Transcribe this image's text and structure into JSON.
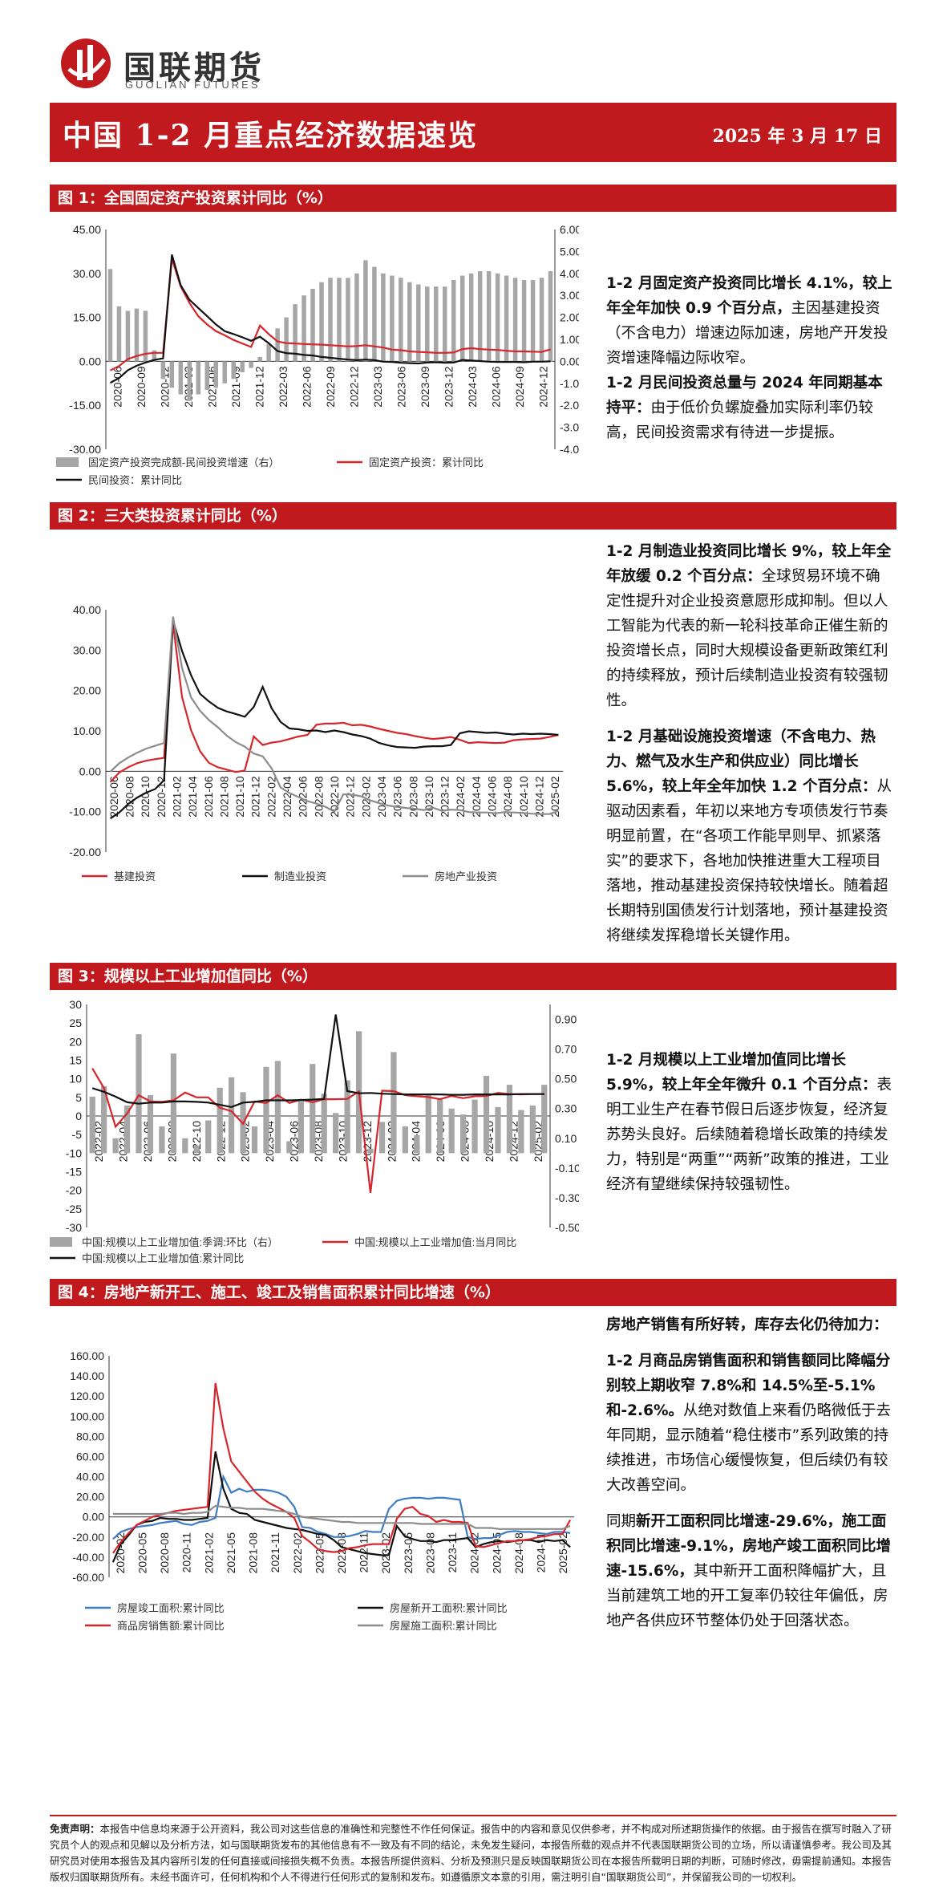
{
  "header": {
    "logo_text": "国联期货",
    "logo_sub": "GUOLIAN FUTURES",
    "title": "中国 1-2 月重点经济数据速览",
    "date": "2025 年 3 月 17 日"
  },
  "sections": [
    {
      "title": "图 1：全国固定资产投资累计同比（%）"
    },
    {
      "title": "图 2：三大类投资累计同比（%）"
    },
    {
      "title": "图 3：规模以上工业增加值同比（%）"
    },
    {
      "title": "图 4：房地产新开工、施工、竣工及销售面积累计同比增速（%）"
    }
  ],
  "text": {
    "s1_p1_bold": "1-2 月固定资产投资同比增长 4.1%，较上年全年加快 0.9 个百分点，",
    "s1_p1_rest": "主因基建投资（不含电力）增速边际加速，房地产开发投资增速降幅边际收窄。",
    "s1_p2_bold": "1-2 月民间投资总量与 2024 年同期基本持平：",
    "s1_p2_rest": "由于低价负螺旋叠加实际利率仍较高，民间投资需求有待进一步提振。",
    "s2_p1_bold": "1-2 月制造业投资同比增长 9%，较上年全年放缓 0.2 个百分点：",
    "s2_p1_rest": "全球贸易环境不确定性提升对企业投资意愿形成抑制。但以人工智能为代表的新一轮科技革命正催生新的投资增长点，同时大规模设备更新政策红利的持续释放，预计后续制造业投资有较强韧性。",
    "s2_p2_bold": "1-2 月基础设施投资增速（不含电力、热力、燃气及水生产和供应业）同比增长 5.6%，较上年全年加快 1.2 个百分点：",
    "s2_p2_rest": "从驱动因素看，年初以来地方专项债发行节奏明显前置，在“各项工作能早则早、抓紧落实”的要求下，各地加快推进重大工程项目落地，推动基建投资保持较快增长。随着超长期特别国债发行计划落地，预计基建投资将继续发挥稳增长关键作用。",
    "s3_p1_bold": "1-2 月规模以上工业增加值同比增长 5.9%，较上年全年微升 0.1 个百分点：",
    "s3_p1_rest": "表明工业生产在春节假日后逐步恢复，经济复苏势头良好。后续随着稳增长政策的持续发力，特别是“两重”“两新”政策的推进，工业经济有望继续保持较强韧性。",
    "s4_p0_bold": "房地产销售有所好转，库存去化仍待加力：",
    "s4_p1_bold": "1-2 月商品房销售面积和销售额同比降幅分别较上期收窄 7.8%和 14.5%至-5.1%和-2.6%。",
    "s4_p1_rest": "从绝对数值上来看仍略微低于去年同期，显示随着“稳住楼市”系列政策的持续推进，市场信心缓慢恢复，但后续仍有较大改善空间。",
    "s4_p2_pre": "同期",
    "s4_p2_bold": "新开工面积同比增速-29.6%，施工面积同比增速-9.1%，房地产竣工面积同比增速-15.6%，",
    "s4_p2_rest": "其中新开工面积降幅扩大，且当前建筑工地的开工复率仍较往年偏低，房地产各供应环节整体仍处于回落状态。"
  },
  "disclaimer": {
    "label": "免责声明：",
    "body": "本报告中信息均来源于公开资料，我公司对这些信息的准确性和完整性不作任何保证。报告中的内容和意见仅供参考，并不构成对所述期货操作的依据。由于报告在撰写时融入了研究员个人的观点和见解以及分析方法，如与国联期货发布的其他信息有不一致及有不同的结论，未免发生疑问，本报告所载的观点并不代表国联期货公司的立场，所以请谨慎参考。我公司及其研究员对使用本报告及其内容所引发的任何直接或间接损失概不负责。本报告所提供资料、分析及预测只是反映国联期货公司在本报告所载明日期的判断，可随时修改，毋需提前通知。本报告版权归国联期货所有。未经书面许可，任何机构和个人不得进行任何形式的复制和发布。如遵循原文本意的引用，需注明引自“国联期货公司”，并保留我公司的一切权利。"
  },
  "colors": {
    "brand_red": "#c01a1f",
    "line_red": "#d7262b",
    "line_black": "#111111",
    "bar_gray": "#a6a6a6",
    "line_gray": "#8c8c8c",
    "line_blue": "#3e7cc4"
  },
  "chart_data": [
    {
      "type": "line",
      "ylim": [
        -30,
        45
      ],
      "ylim_right": [
        -4,
        6
      ],
      "yticks": [
        "45.00",
        "30.00",
        "15.00",
        "0.00",
        "-15.00",
        "-30.00"
      ],
      "yticks_right": [
        "6.00",
        "5.00",
        "4.00",
        "3.00",
        "2.00",
        "1.00",
        "0.00",
        "-1.00",
        "-2.00",
        "-3.00",
        "-4.00"
      ],
      "xticks": [
        "2020-06",
        "2020-09",
        "2020-12",
        "2021-03",
        "2021-06",
        "2021-09",
        "2021-12",
        "2022-03",
        "2022-06",
        "2022-09",
        "2022-12",
        "2023-03",
        "2023-06",
        "2023-09",
        "2023-12",
        "2024-03",
        "2024-06",
        "2024-09",
        "2024-12"
      ],
      "series": [
        {
          "name": "固定资产投资完成额-民间投资增速（右）",
          "style": "bar",
          "axis": "right",
          "values": [
            4.2,
            2.5,
            2.3,
            2.4,
            2.3,
            0.5,
            -0.8,
            -1.2,
            -1.5,
            -1.8,
            -1.5,
            -1.3,
            -1.2,
            -1.0,
            -0.8,
            -0.5,
            -0.3,
            0.2,
            0.8,
            1.5,
            2.0,
            2.6,
            3.0,
            3.3,
            3.6,
            3.8,
            3.8,
            3.8,
            4.0,
            4.6,
            4.3,
            4.0,
            3.9,
            3.8,
            3.6,
            3.5,
            3.4,
            3.4,
            3.4,
            3.7,
            3.9,
            4.0,
            4.1,
            4.1,
            4.0,
            3.9,
            3.8,
            3.7,
            3.7,
            3.8,
            4.1
          ]
        },
        {
          "name": "固定资产投资：累计同比",
          "style": "line",
          "axis": "left",
          "values": [
            -3.1,
            -1.6,
            0.8,
            1.8,
            2.6,
            2.9,
            2.9,
            35.0,
            25.6,
            19.9,
            15.4,
            12.6,
            10.3,
            8.9,
            7.3,
            6.1,
            4.9,
            12.2,
            9.3,
            6.8,
            6.2,
            6.1,
            5.9,
            5.8,
            5.7,
            5.5,
            5.3,
            5.1,
            5.2,
            5.5,
            5.1,
            4.7,
            4.0,
            3.8,
            3.4,
            3.2,
            3.1,
            2.9,
            2.9,
            3.0,
            4.2,
            4.5,
            4.2,
            4.0,
            3.9,
            3.6,
            3.4,
            3.4,
            3.3,
            3.2,
            4.1
          ]
        },
        {
          "name": "民间投资：累计同比",
          "style": "line",
          "axis": "left",
          "values": [
            -7.3,
            -5.7,
            -3.0,
            -1.5,
            -0.4,
            0.5,
            1.0,
            36.4,
            26.0,
            21.0,
            18.2,
            15.4,
            12.6,
            10.3,
            9.3,
            8.2,
            7.0,
            8.4,
            6.2,
            3.5,
            2.8,
            2.6,
            2.2,
            2.0,
            1.5,
            1.2,
            0.9,
            0.6,
            0.4,
            0.6,
            0.4,
            -0.1,
            -0.2,
            -0.5,
            -0.6,
            -0.7,
            -0.4,
            -0.3,
            -0.5,
            -0.4,
            0.5,
            0.3,
            0.1,
            -0.1,
            -0.2,
            -0.2,
            -0.2,
            -0.3,
            -0.1,
            -0.1,
            0.0
          ]
        }
      ]
    },
    {
      "type": "line",
      "ylim": [
        -20,
        40
      ],
      "yticks": [
        "40.00",
        "30.00",
        "20.00",
        "10.00",
        "0.00",
        "-10.00",
        "-20.00"
      ],
      "xticks": [
        "2020-06",
        "2020-08",
        "2020-10",
        "2020-12",
        "2021-02",
        "2021-04",
        "2021-06",
        "2021-08",
        "2021-10",
        "2021-12",
        "2022-02",
        "2022-04",
        "2022-06",
        "2022-08",
        "2022-10",
        "2022-12",
        "2023-02",
        "2023-04",
        "2023-06",
        "2023-08",
        "2023-10",
        "2023-12",
        "2024-02",
        "2024-04",
        "2024-06",
        "2024-08",
        "2024-10",
        "2024-12",
        "2025-02"
      ],
      "series": [
        {
          "name": "基建投资",
          "values": [
            -2.7,
            -0.3,
            1.0,
            2.0,
            2.6,
            3.0,
            3.3,
            36.6,
            18.4,
            10.2,
            5.0,
            2.1,
            1.0,
            0.4,
            -0.2,
            0.2,
            8.6,
            6.5,
            7.1,
            7.4,
            8.0,
            8.6,
            9.0,
            11.5,
            11.8,
            11.8,
            12.0,
            11.4,
            11.5,
            11.1,
            10.5,
            10.0,
            9.5,
            9.2,
            8.7,
            8.3,
            8.0,
            8.2,
            8.5,
            7.8,
            7.0,
            7.2,
            7.1,
            7.0,
            7.1,
            7.7,
            7.9,
            8.0,
            8.1,
            8.5,
            9.0
          ]
        },
        {
          "name": "制造业投资",
          "values": [
            -11.7,
            -10.2,
            -8.1,
            -6.5,
            -5.3,
            -4.4,
            -2.2,
            37.3,
            29.8,
            23.8,
            19.2,
            17.3,
            15.7,
            14.8,
            14.2,
            13.5,
            15.9,
            20.9,
            15.6,
            12.2,
            10.6,
            10.4,
            10.0,
            10.1,
            9.7,
            10.1,
            9.7,
            9.1,
            8.7,
            8.1,
            7.0,
            6.4,
            6.0,
            5.9,
            5.8,
            6.1,
            6.2,
            6.2,
            6.5,
            9.4,
            9.9,
            9.7,
            9.5,
            9.6,
            9.3,
            9.1,
            9.3,
            9.2,
            9.3,
            9.2,
            9.0
          ]
        },
        {
          "name": "房地产业投资",
          "values": [
            -0.1,
            2.0,
            3.4,
            4.6,
            5.6,
            6.3,
            7.0,
            38.3,
            25.6,
            18.3,
            15.0,
            12.7,
            10.9,
            8.8,
            7.2,
            6.1,
            4.4,
            3.7,
            0.7,
            -4.0,
            -5.4,
            -6.4,
            -7.4,
            -8.0,
            -8.8,
            -10.0,
            -5.7,
            -5.8,
            -6.2,
            -7.2,
            -7.9,
            -8.5,
            -8.8,
            -9.1,
            -9.3,
            -9.6,
            -9.0,
            -9.8,
            -9.5,
            -9.6,
            -10.1,
            -10.2,
            -10.2,
            -10.4,
            -10.1,
            -10.2,
            -10.3,
            -10.5,
            -10.6,
            -10.6,
            -9.8
          ]
        }
      ]
    },
    {
      "type": "line",
      "ylim": [
        -30,
        30
      ],
      "ylim_right": [
        -0.5,
        1.0
      ],
      "yticks": [
        "30",
        "25",
        "20",
        "15",
        "10",
        "5",
        "0",
        "-5",
        "-10",
        "-15",
        "-20",
        "-25",
        "-30"
      ],
      "yticks_right": [
        "0.90",
        "0.70",
        "0.50",
        "0.30",
        "0.10",
        "-0.10",
        "-0.30",
        "-0.50"
      ],
      "xticks": [
        "2022-02",
        "2022-04",
        "2022-06",
        "2022-08",
        "2022-10",
        "2022-12",
        "2023-02",
        "2023-04",
        "2023-06",
        "2023-08",
        "2023-10",
        "2023-12",
        "2024-02",
        "2024-04",
        "2024-06",
        "2024-08",
        "2024-10",
        "2024-12",
        "2025-02"
      ],
      "series": [
        {
          "name": "中国:规模以上工业增加值:季调:环比（右）",
          "style": "bar",
          "axis": "right",
          "values": [
            0.38,
            0.45,
            0.1,
            0.32,
            0.8,
            0.39,
            0.18,
            0.67,
            0.1,
            0.05,
            0.22,
            0.44,
            0.51,
            0.41,
            0.18,
            0.58,
            0.62,
            0.08,
            0.35,
            0.6,
            0.4,
            0.27,
            0.49,
            0.82,
            0.03,
            0.21,
            0.68,
            0.18,
            0.12,
            0.39,
            0.36,
            0.3,
            0.26,
            0.36,
            0.52,
            0.31,
            0.46,
            0.29,
            0.32,
            0.46
          ]
        },
        {
          "name": "中国:规模以上工业增加值:当月同比",
          "style": "line",
          "axis": "left",
          "values": [
            12.8,
            7.5,
            -2.9,
            0.7,
            5.6,
            3.9,
            3.8,
            4.2,
            6.3,
            5.0,
            5.0,
            2.2,
            1.3,
            -2.1,
            3.9,
            3.5,
            5.6,
            3.5,
            4.4,
            3.7,
            4.5,
            4.5,
            4.6,
            6.6,
            -20.7,
            6.8,
            6.7,
            5.6,
            5.3,
            5.1,
            4.5,
            5.4,
            4.8,
            5.3,
            5.4,
            6.2,
            5.9,
            5.8,
            5.9,
            5.9
          ]
        },
        {
          "name": "中国:规模以上工业增加值:累计同比",
          "style": "line",
          "axis": "left",
          "values": [
            7.5,
            6.5,
            5.2,
            3.7,
            3.3,
            3.6,
            3.6,
            3.9,
            3.9,
            3.8,
            3.6,
            3.0,
            2.4,
            3.6,
            3.8,
            4.2,
            4.2,
            4.2,
            4.3,
            4.4,
            4.6,
            27.3,
            6.7,
            6.1,
            6.2,
            6.0,
            5.9,
            5.8,
            5.8,
            5.8,
            5.8,
            5.7,
            5.7,
            5.8,
            5.8,
            5.8,
            5.8,
            5.9,
            5.9,
            5.9
          ]
        }
      ]
    },
    {
      "type": "line",
      "ylim": [
        -60,
        160
      ],
      "yticks": [
        "160.00",
        "140.00",
        "120.00",
        "100.00",
        "80.00",
        "60.00",
        "40.00",
        "20.00",
        "0.00",
        "-20.00",
        "-40.00",
        "-60.00"
      ],
      "xticks": [
        "2020-02",
        "2020-05",
        "2020-08",
        "2020-11",
        "2021-02",
        "2021-05",
        "2021-08",
        "2021-11",
        "2022-02",
        "2022-05",
        "2022-08",
        "2022-11",
        "2023-02",
        "2023-05",
        "2023-08",
        "2023-11",
        "2024-02",
        "2024-05",
        "2024-08",
        "2024-11",
        "2025-02"
      ],
      "series": [
        {
          "name": "房屋竣工面积:累计同比",
          "values": [
            -22,
            -15,
            -12,
            -10,
            -9,
            -8,
            -6,
            -5,
            -4,
            -7,
            -8,
            -5,
            -4,
            -1,
            40,
            24,
            28,
            25,
            27,
            27,
            26,
            24,
            20,
            10,
            -10,
            -11,
            -15,
            -17,
            -20,
            -20,
            -19,
            -17,
            -14,
            -15,
            -15,
            8,
            16,
            18,
            19,
            19,
            18,
            19,
            19,
            18,
            17,
            -20,
            -22,
            -21,
            -21,
            -18,
            -15,
            -14,
            -15,
            -15,
            -16,
            -17,
            -15,
            -15,
            -16
          ]
        },
        {
          "name": "房屋新开工面积:累计同比",
          "values": [
            -45,
            -27,
            -18,
            -8,
            -5,
            -4,
            -1,
            -2,
            -2,
            -3,
            -3,
            -2,
            -1,
            65,
            28,
            8,
            4,
            3,
            -3,
            -5,
            -7,
            -9,
            -11,
            -12,
            -13,
            -15,
            -17,
            -18,
            -23,
            -30,
            -32,
            -34,
            -36,
            -37,
            -38,
            -38,
            -9,
            -19,
            -22,
            -24,
            -24,
            -25,
            -23,
            -23,
            -22,
            -21,
            -30,
            -27,
            -25,
            -24,
            -25,
            -24,
            -23,
            -23,
            -25,
            -23,
            -24,
            -23,
            -30
          ]
        },
        {
          "name": "商品房销售额:累计同比",
          "values": [
            -36,
            -25,
            -16,
            -8,
            -4,
            0,
            2,
            4,
            6,
            7,
            8,
            9,
            10,
            133,
            88,
            55,
            45,
            35,
            25,
            18,
            13,
            9,
            5,
            -1,
            -19,
            -25,
            -32,
            -34,
            -35,
            -34,
            -31,
            -30,
            -28,
            -27,
            -27,
            -27,
            -2,
            8,
            10,
            3,
            1,
            -5,
            -3,
            -5,
            -5,
            -6,
            -29,
            -30,
            -28,
            -26,
            -24,
            -24,
            -23,
            -22,
            -20,
            -19,
            -17,
            -17,
            -3
          ]
        },
        {
          "name": "房屋施工面积:累计同比",
          "values": [
            3,
            3,
            3,
            3,
            3,
            3,
            3,
            4,
            4,
            3,
            4,
            4,
            5,
            11,
            10,
            9,
            9,
            8,
            8,
            8,
            7,
            6,
            5,
            3,
            0,
            -1,
            -2,
            -3,
            -4,
            -5,
            -5,
            -6,
            -6,
            -6,
            -6,
            -6,
            -6,
            -6,
            -6,
            -7,
            -7,
            -7,
            -7,
            -7,
            -7,
            -7,
            -11,
            -11,
            -11,
            -12,
            -12,
            -12,
            -12,
            -12,
            -12,
            -12,
            -12,
            -12,
            -9
          ]
        }
      ]
    }
  ],
  "legends": {
    "c1": [
      "固定资产投资完成额-民间投资增速（右）",
      "固定资产投资：累计同比",
      "民间投资：累计同比"
    ],
    "c2": [
      "基建投资",
      "制造业投资",
      "房地产业投资"
    ],
    "c3": [
      "中国:规模以上工业增加值:季调:环比（右）",
      "中国:规模以上工业增加值:当月同比",
      "中国:规模以上工业增加值:累计同比"
    ],
    "c4": [
      "房屋竣工面积:累计同比",
      "房屋新开工面积:累计同比",
      "商品房销售额:累计同比",
      "房屋施工面积:累计同比"
    ]
  }
}
